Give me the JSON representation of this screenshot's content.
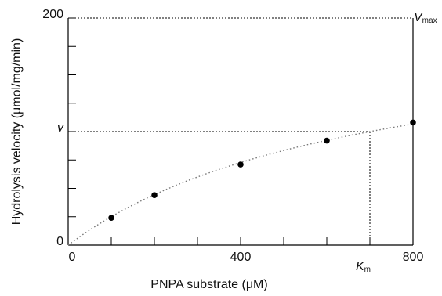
{
  "chart_data": {
    "type": "scatter",
    "x_label": "PNPA substrate (μM)",
    "y_label": "Hydrolysis velocity (μmol/mg/min)",
    "x": [
      100,
      200,
      400,
      600,
      800
    ],
    "values": [
      24,
      44,
      71,
      92,
      108
    ],
    "color": "#000000",
    "xlim": [
      0,
      800
    ],
    "xticks": [
      0,
      400,
      800
    ],
    "xminorticks": [
      100,
      200,
      300,
      500,
      600,
      700
    ],
    "ylim": [
      0,
      200
    ],
    "yticks": [
      0,
      {
        "value": 100,
        "label": "v"
      },
      200
    ],
    "yminorticks": [
      25,
      50,
      75,
      125,
      150,
      175
    ],
    "fit": {
      "vmax": 200,
      "km": 700,
      "color": "#777777"
    },
    "vmax_label": {
      "symbol": "V",
      "subscript": "max"
    },
    "km_label": {
      "symbol": "K",
      "subscript": "m"
    }
  }
}
